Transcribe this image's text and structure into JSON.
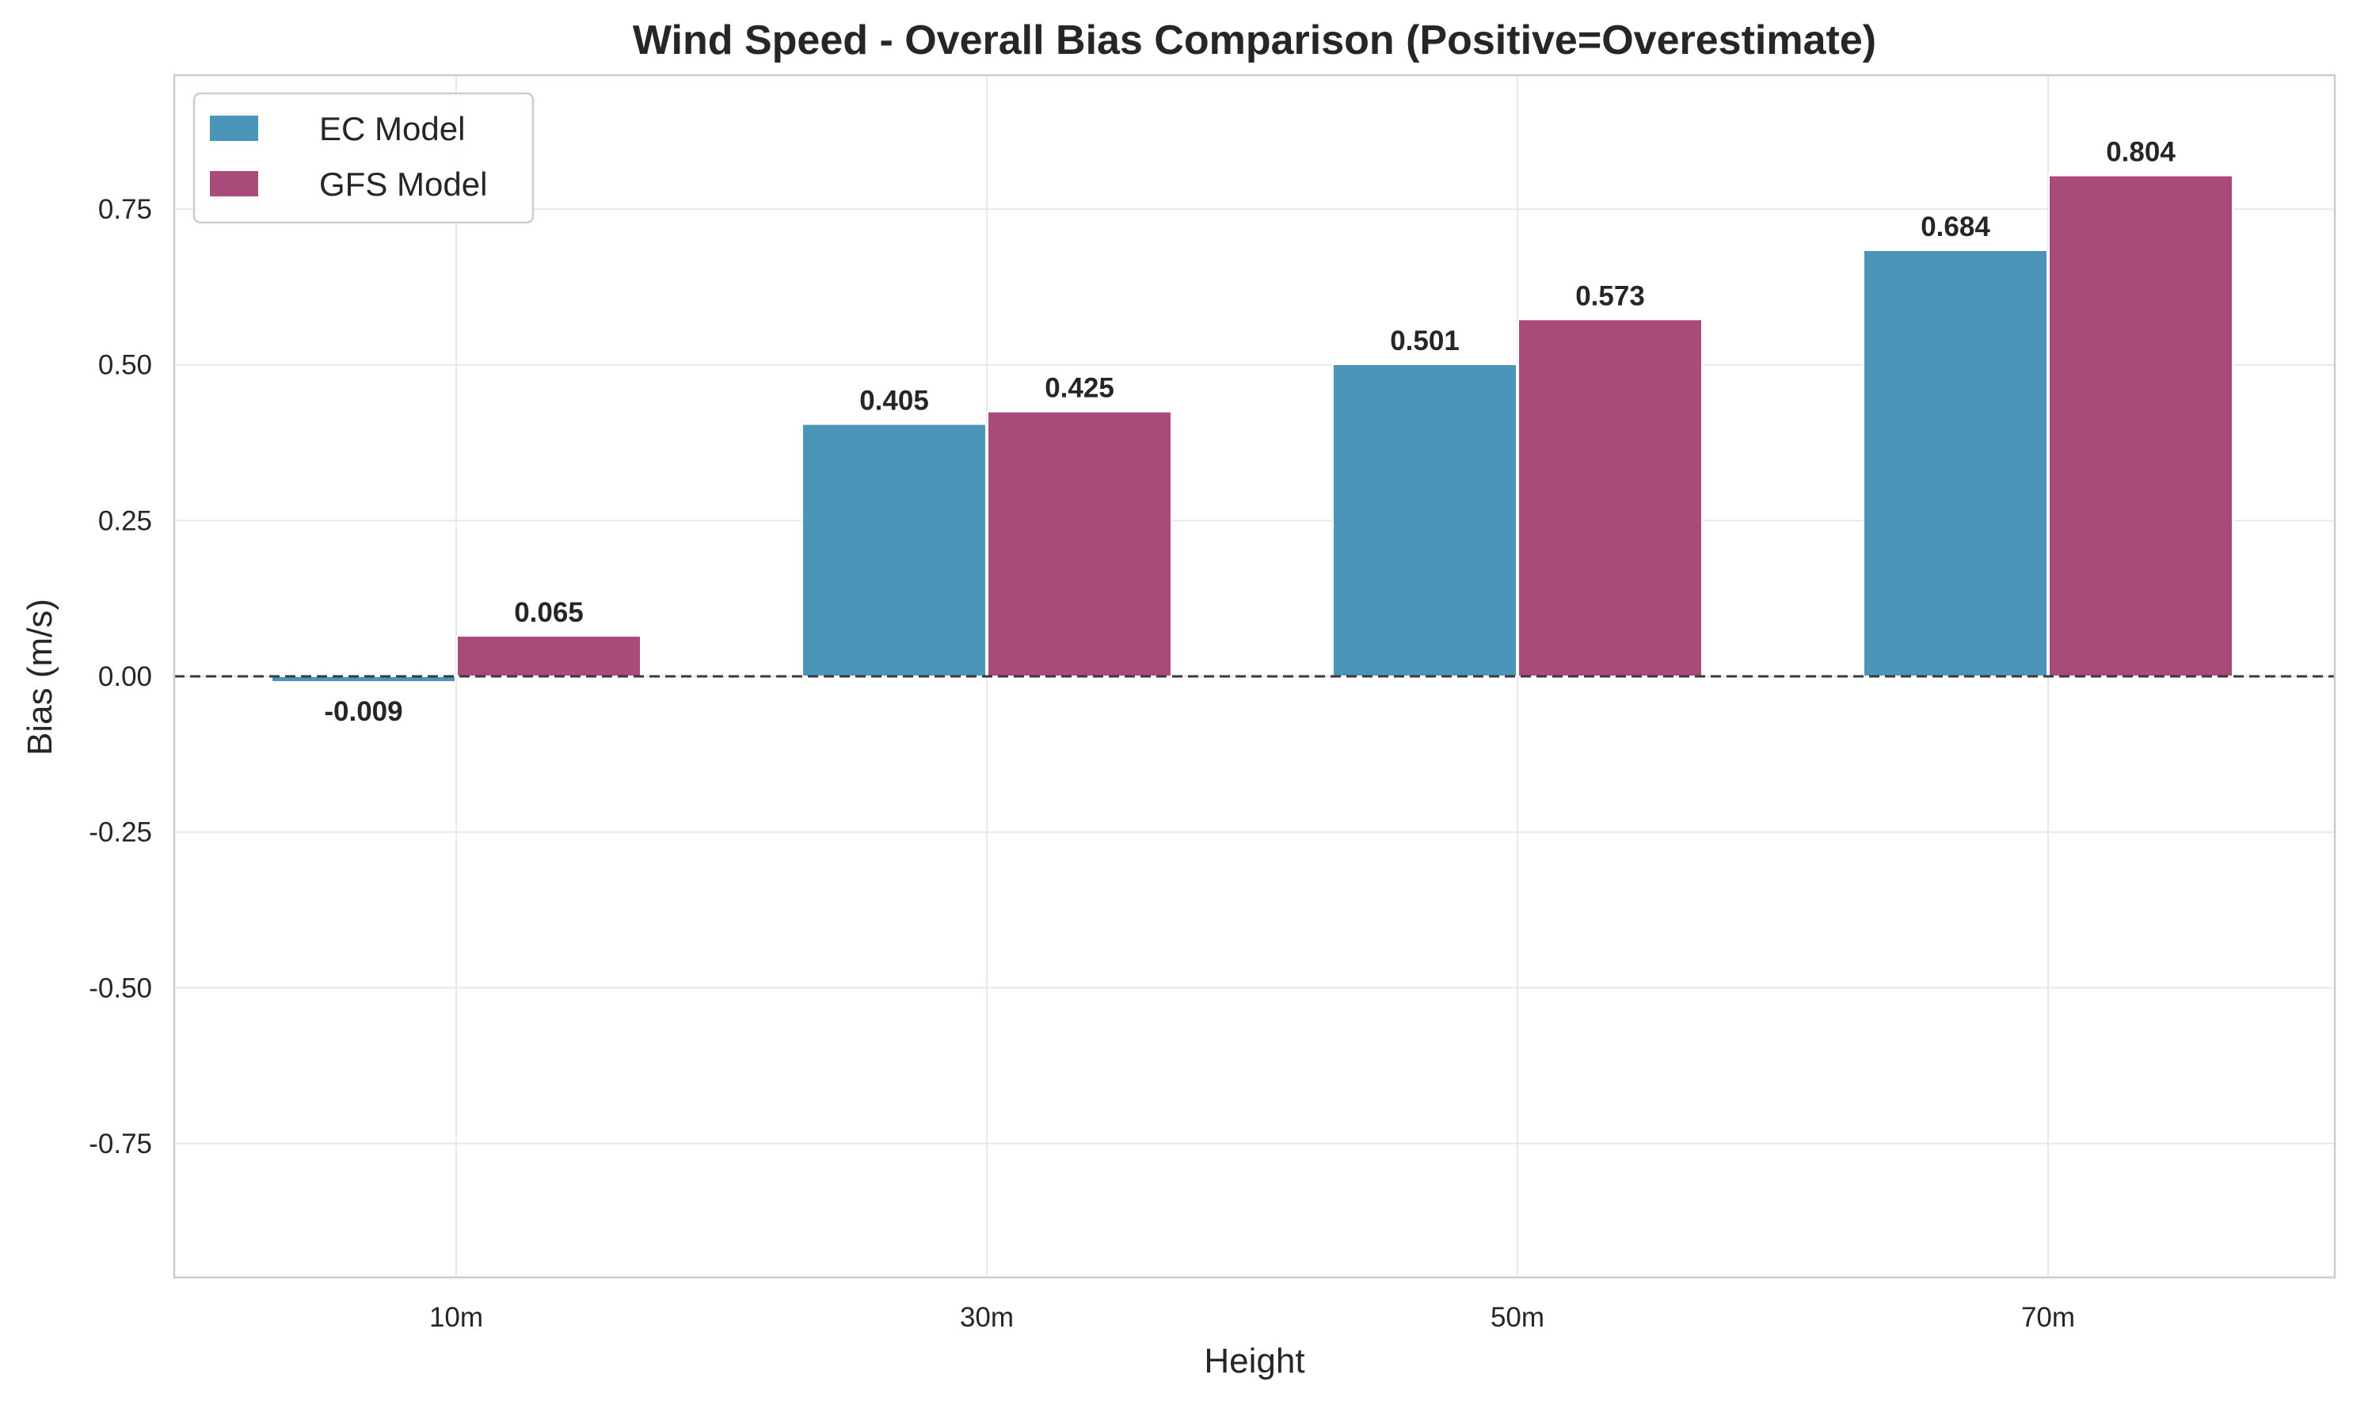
{
  "chart_data": {
    "type": "bar",
    "title": "Wind Speed - Overall Bias Comparison (Positive=Overestimate)",
    "xlabel": "Height",
    "ylabel": "Bias (m/s)",
    "categories": [
      "10m",
      "30m",
      "50m",
      "70m"
    ],
    "series": [
      {
        "name": "EC Model",
        "color": "#4a95b8",
        "values": [
          -0.009,
          0.405,
          0.501,
          0.684
        ],
        "labels": [
          "-0.009",
          "0.405",
          "0.501",
          "0.684"
        ]
      },
      {
        "name": "GFS Model",
        "color": "#a84b7b",
        "values": [
          0.065,
          0.425,
          0.573,
          0.804
        ],
        "labels": [
          "0.065",
          "0.425",
          "0.573",
          "0.804"
        ]
      }
    ],
    "ylim": [
      -0.965,
      0.965
    ],
    "yticks": [
      -0.75,
      -0.5,
      -0.25,
      0.0,
      0.25,
      0.5,
      0.75
    ],
    "ytick_labels": [
      "-0.75",
      "-0.50",
      "-0.25",
      "0.00",
      "0.25",
      "0.50",
      "0.75"
    ],
    "grid": true,
    "zero_line": "dashed",
    "legend_position": "top-left"
  }
}
